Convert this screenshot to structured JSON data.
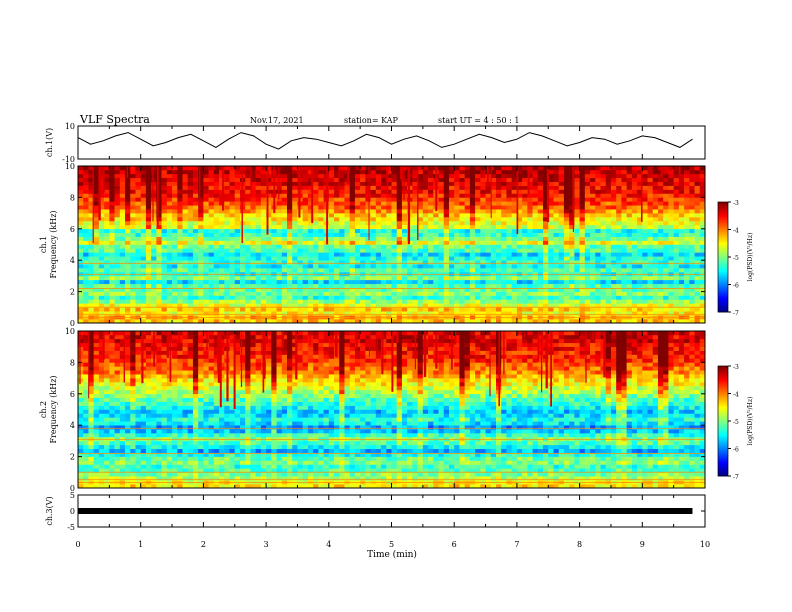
{
  "header": {
    "title": "VLF Spectra",
    "date": "Nov.17, 2021",
    "station": "station= KAP",
    "start": "start  UT =   4 : 50 : 1"
  },
  "chart_data": [
    {
      "type": "line",
      "name": "ch1-waveform",
      "ylabel": "ch.1(V)",
      "ylim": [
        -10,
        10
      ],
      "xlim": [
        0,
        10
      ],
      "y_ticks": [
        "10",
        "-10"
      ],
      "y_tick_values": [
        10,
        -10
      ],
      "x_end": 9.8,
      "values": [
        3,
        -1,
        1,
        4,
        6,
        2,
        -2,
        0,
        3,
        5,
        1,
        -3,
        2,
        6,
        4,
        -1,
        -4,
        1,
        3,
        2,
        0,
        -2,
        1,
        5,
        3,
        -1,
        2,
        4,
        1,
        -3,
        -1,
        2,
        5,
        3,
        0,
        2,
        6,
        4,
        1,
        -2,
        0,
        3,
        2,
        -1,
        1,
        4,
        3,
        0,
        -3,
        2
      ]
    },
    {
      "type": "heatmap",
      "name": "ch1-spectrogram",
      "ylabel": "ch.1 Frequency  (kHz)",
      "ylim": [
        0,
        10
      ],
      "xlim": [
        0,
        10
      ],
      "y_ticks": [
        "0",
        "2",
        "4",
        "6",
        "8",
        "10"
      ],
      "y_tick_values": [
        0,
        2,
        4,
        6,
        8,
        10
      ],
      "colorbar": {
        "label": "log(PSD)(V²/Hz)",
        "range": [
          -7,
          -3
        ],
        "ticks": [
          "-3",
          "-4",
          "-5",
          "-6",
          "-7"
        ],
        "tick_values": [
          -3,
          -4,
          -5,
          -6,
          -7
        ]
      },
      "band_levels": [
        -4.3,
        -4.2,
        -4.5,
        -4.3,
        -4.6,
        -4.9,
        -5.3,
        -5.0,
        -5.1,
        -5.2,
        -5.6,
        -5.0,
        -5.4,
        -5.2,
        -5.5,
        -5.3,
        -5.4,
        -5.6,
        -5.2,
        -5.1,
        -4.6,
        -5.0,
        -5.3,
        -5.4,
        -4.7,
        -4.6,
        -4.4,
        -4.3,
        -4.1,
        -3.9,
        -3.8,
        -3.7,
        -3.6,
        -3.5,
        -3.5,
        -3.4,
        -3.4,
        -3.3,
        -3.3,
        -3.2
      ]
    },
    {
      "type": "heatmap",
      "name": "ch2-spectrogram",
      "ylabel": "ch.2 Frequency  (kHz)",
      "ylim": [
        0,
        10
      ],
      "xlim": [
        0,
        10
      ],
      "y_ticks": [
        "0",
        "2",
        "4",
        "6",
        "8",
        "10"
      ],
      "y_tick_values": [
        0,
        2,
        4,
        6,
        8,
        10
      ],
      "colorbar": {
        "label": "log(PSD)(V²/Hz)",
        "range": [
          -7,
          -3
        ],
        "ticks": [
          "-3",
          "-4",
          "-5",
          "-6",
          "-7"
        ],
        "tick_values": [
          -3,
          -4,
          -5,
          -6,
          -7
        ]
      },
      "band_levels": [
        -4.4,
        -4.5,
        -4.8,
        -5.0,
        -5.2,
        -5.3,
        -5.0,
        -5.1,
        -5.4,
        -5.8,
        -5.5,
        -5.2,
        -5.0,
        -5.3,
        -5.7,
        -5.9,
        -5.6,
        -5.4,
        -5.6,
        -5.7,
        -5.5,
        -5.3,
        -5.2,
        -5.0,
        -4.8,
        -4.7,
        -4.5,
        -4.4,
        -4.2,
        -4.0,
        -3.9,
        -3.8,
        -3.7,
        -3.6,
        -3.6,
        -3.5,
        -3.5,
        -3.4,
        -3.4,
        -3.4
      ]
    },
    {
      "type": "line",
      "name": "ch3-waveform",
      "ylabel": "ch.3(V)",
      "ylim": [
        -5,
        5
      ],
      "xlim": [
        0,
        10
      ],
      "y_ticks": [
        "5",
        "0",
        "-5"
      ],
      "y_tick_values": [
        5,
        0,
        -5
      ],
      "x_end": 9.8,
      "level": 0
    }
  ],
  "xaxis": {
    "label": "Time  (min)",
    "ticks": [
      "0",
      "1",
      "2",
      "3",
      "4",
      "5",
      "6",
      "7",
      "8",
      "9",
      "10"
    ],
    "tick_values": [
      0,
      1,
      2,
      3,
      4,
      5,
      6,
      7,
      8,
      9,
      10
    ]
  }
}
